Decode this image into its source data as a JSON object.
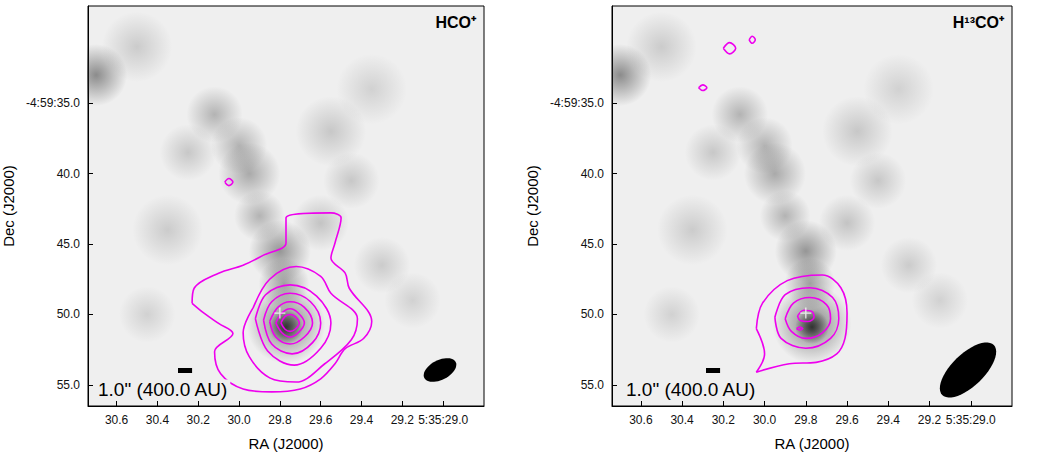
{
  "chart_data": [
    {
      "type": "contour",
      "title": "HCO⁺",
      "x_label": "RA (J2000)",
      "y_label": "Dec (J2000)",
      "xlim": [
        30.74,
        28.8
      ],
      "ylim": [
        56.5,
        28.1
      ],
      "xticks": [
        30.6,
        30.4,
        30.2,
        {
          "value": 30,
          "label": "30.0"
        },
        29.8,
        29.6,
        29.4,
        29.2,
        {
          "value": 29,
          "label": "5:35:29.0"
        }
      ],
      "yticks": [
        {
          "value": 35,
          "label": "-4:59:35.0"
        },
        {
          "value": 40,
          "label": "40.0"
        },
        {
          "value": 45,
          "label": "45.0"
        },
        {
          "value": 50,
          "label": "50.0"
        },
        {
          "value": 55,
          "label": "55.0"
        }
      ],
      "color": "#ee00ee",
      "contours": [
        [
          [
            30.23,
            49.21
          ],
          [
            30.22,
            48.14
          ],
          [
            30.1,
            47.07
          ],
          [
            29.98,
            46.5
          ],
          [
            29.88,
            45.79
          ],
          [
            29.77,
            44.93
          ],
          [
            29.77,
            43.14
          ],
          [
            29.55,
            42.79
          ],
          [
            29.5,
            43.14
          ],
          [
            29.53,
            44.93
          ],
          [
            29.55,
            46.0
          ],
          [
            29.48,
            47.07
          ],
          [
            29.46,
            48.14
          ],
          [
            29.35,
            50.5
          ],
          [
            29.39,
            51.71
          ],
          [
            29.48,
            52.43
          ],
          [
            29.53,
            53.5
          ],
          [
            29.6,
            54.57
          ],
          [
            29.7,
            55.29
          ],
          [
            29.84,
            55.5
          ],
          [
            29.98,
            55.29
          ],
          [
            30.09,
            54.21
          ],
          [
            30.12,
            52.64
          ],
          [
            30.03,
            51.36
          ],
          [
            30.1,
            50.64
          ],
          [
            30.17,
            49.93
          ],
          [
            30.23,
            49.21
          ]
        ],
        [
          [
            29.93,
            49.5
          ],
          [
            29.85,
            47.5
          ],
          [
            29.72,
            46.6
          ],
          [
            29.6,
            47.3
          ],
          [
            29.55,
            48.5
          ],
          [
            29.42,
            50.3
          ],
          [
            29.45,
            51.8
          ],
          [
            29.58,
            53.5
          ],
          [
            29.72,
            54.8
          ],
          [
            29.85,
            54.5
          ],
          [
            29.95,
            53.0
          ],
          [
            29.98,
            51.3
          ],
          [
            29.93,
            49.5
          ]
        ],
        [
          [
            29.92,
            50.3
          ],
          [
            29.87,
            48.6
          ],
          [
            29.75,
            47.9
          ],
          [
            29.62,
            48.7
          ],
          [
            29.55,
            50.6
          ],
          [
            29.6,
            52.4
          ],
          [
            29.73,
            53.6
          ],
          [
            29.86,
            52.6
          ],
          [
            29.92,
            50.3
          ]
        ],
        [
          [
            29.88,
            50.4
          ],
          [
            29.84,
            49.1
          ],
          [
            29.75,
            48.5
          ],
          [
            29.65,
            49.1
          ],
          [
            29.6,
            50.6
          ],
          [
            29.64,
            52.0
          ],
          [
            29.74,
            52.8
          ],
          [
            29.84,
            52.1
          ],
          [
            29.88,
            50.4
          ]
        ],
        [
          [
            29.85,
            50.5
          ],
          [
            29.81,
            49.5
          ],
          [
            29.75,
            49.1
          ],
          [
            29.68,
            49.5
          ],
          [
            29.64,
            50.6
          ],
          [
            29.68,
            51.6
          ],
          [
            29.75,
            52.1
          ],
          [
            29.82,
            51.6
          ],
          [
            29.85,
            50.5
          ]
        ],
        [
          [
            29.82,
            50.6
          ],
          [
            29.79,
            49.9
          ],
          [
            29.75,
            49.6
          ],
          [
            29.71,
            49.9
          ],
          [
            29.68,
            50.6
          ],
          [
            29.71,
            51.3
          ],
          [
            29.75,
            51.6
          ],
          [
            29.79,
            51.3
          ],
          [
            29.82,
            50.6
          ]
        ],
        [
          [
            29.795,
            50.6
          ],
          [
            29.775,
            50.15
          ],
          [
            29.75,
            50.0
          ],
          [
            29.725,
            50.15
          ],
          [
            29.705,
            50.6
          ],
          [
            29.725,
            51.05
          ],
          [
            29.75,
            51.2
          ],
          [
            29.775,
            51.05
          ],
          [
            29.795,
            50.6
          ]
        ],
        [
          [
            30.07,
            40.6
          ],
          [
            30.05,
            40.35
          ],
          [
            30.03,
            40.6
          ],
          [
            30.05,
            40.85
          ],
          [
            30.07,
            40.6
          ]
        ]
      ],
      "continuum": [
        [
          30.12,
          35.8,
          2.0,
          0.3
        ],
        [
          30.0,
          38.0,
          2.0,
          0.3
        ],
        [
          29.95,
          40.0,
          2.2,
          0.35
        ],
        [
          29.9,
          43.0,
          1.8,
          0.3
        ],
        [
          29.8,
          45.5,
          2.2,
          0.45
        ],
        [
          29.78,
          47.8,
          1.8,
          0.4
        ],
        [
          29.77,
          50.7,
          2.8,
          0.55
        ],
        [
          29.77,
          50.9,
          1.2,
          0.9
        ],
        [
          30.7,
          33.0,
          2.2,
          0.5
        ],
        [
          29.45,
          40.5,
          2.0,
          0.2
        ],
        [
          30.35,
          44.0,
          2.5,
          0.18
        ],
        [
          29.6,
          43.5,
          2.0,
          0.22
        ],
        [
          29.3,
          46.5,
          2.0,
          0.18
        ],
        [
          30.25,
          38.5,
          2.0,
          0.2
        ],
        [
          29.55,
          37.0,
          2.5,
          0.2
        ],
        [
          30.45,
          50.0,
          2.0,
          0.15
        ],
        [
          29.15,
          49.0,
          2.0,
          0.15
        ],
        [
          29.35,
          34.0,
          2.5,
          0.15
        ],
        [
          30.5,
          31.0,
          2.5,
          0.18
        ]
      ],
      "source": [
        29.8,
        49.9
      ],
      "beam": {
        "major": 2.5,
        "minor": 1.4,
        "pa": -63
      },
      "scale_bar": {
        "length": 1.0,
        "label": "1.0\" (400.0 AU)"
      }
    },
    {
      "type": "contour",
      "title": "H¹³CO⁺",
      "x_label": "RA (J2000)",
      "y_label": "Dec (J2000)",
      "xlim": [
        30.74,
        28.8
      ],
      "ylim": [
        56.5,
        28.1
      ],
      "xticks": [
        30.6,
        30.4,
        30.2,
        {
          "value": 30,
          "label": "30.0"
        },
        29.8,
        29.6,
        29.4,
        29.2,
        {
          "value": 29,
          "label": "5:35:29.0"
        }
      ],
      "yticks": [
        {
          "value": 35,
          "label": "-4:59:35.0"
        },
        {
          "value": 40,
          "label": "40.0"
        },
        {
          "value": 45,
          "label": "45.0"
        },
        {
          "value": 50,
          "label": "50.0"
        },
        {
          "value": 55,
          "label": "55.0"
        }
      ],
      "color": "#ee00ee",
      "contours": [
        [
          [
            30.04,
            51.0
          ],
          [
            30.01,
            49.2
          ],
          [
            29.89,
            47.6
          ],
          [
            29.72,
            47.2
          ],
          [
            29.63,
            48.1
          ],
          [
            29.6,
            49.9
          ],
          [
            29.61,
            51.7
          ],
          [
            29.65,
            52.8
          ],
          [
            29.75,
            53.4
          ],
          [
            29.88,
            53.5
          ],
          [
            30.04,
            54.1
          ],
          [
            30.0,
            52.8
          ],
          [
            30.04,
            51.0
          ]
        ],
        [
          [
            29.95,
            50.2
          ],
          [
            29.9,
            48.6
          ],
          [
            29.78,
            48.1
          ],
          [
            29.67,
            48.8
          ],
          [
            29.64,
            50.3
          ],
          [
            29.68,
            51.7
          ],
          [
            29.8,
            52.4
          ],
          [
            29.92,
            51.7
          ],
          [
            29.95,
            50.2
          ]
        ],
        [
          [
            29.9,
            50.3
          ],
          [
            29.86,
            49.2
          ],
          [
            29.78,
            48.8
          ],
          [
            29.7,
            49.3
          ],
          [
            29.68,
            50.3
          ],
          [
            29.72,
            51.3
          ],
          [
            29.8,
            51.7
          ],
          [
            29.87,
            51.2
          ],
          [
            29.9,
            50.3
          ]
        ],
        [
          [
            29.84,
            50.1
          ],
          [
            29.81,
            49.7
          ],
          [
            29.77,
            49.8
          ],
          [
            29.76,
            50.2
          ],
          [
            29.79,
            50.5
          ],
          [
            29.83,
            50.4
          ],
          [
            29.84,
            50.1
          ]
        ],
        [
          [
            29.845,
            51.0
          ],
          [
            29.83,
            50.9
          ],
          [
            29.815,
            51.0
          ],
          [
            29.83,
            51.1
          ],
          [
            29.845,
            51.0
          ]
        ],
        [
          [
            30.32,
            33.9
          ],
          [
            30.3,
            33.7
          ],
          [
            30.28,
            33.9
          ],
          [
            30.3,
            34.1
          ],
          [
            30.32,
            33.9
          ]
        ],
        [
          [
            30.2,
            31.1
          ],
          [
            30.17,
            30.7
          ],
          [
            30.14,
            31.1
          ],
          [
            30.17,
            31.5
          ],
          [
            30.2,
            31.1
          ]
        ],
        [
          [
            30.075,
            30.5
          ],
          [
            30.06,
            30.25
          ],
          [
            30.045,
            30.5
          ],
          [
            30.06,
            30.75
          ],
          [
            30.075,
            30.5
          ]
        ]
      ],
      "continuum": [
        [
          30.12,
          35.8,
          2.0,
          0.3
        ],
        [
          30.0,
          38.0,
          2.0,
          0.3
        ],
        [
          29.95,
          40.0,
          2.2,
          0.35
        ],
        [
          29.9,
          43.0,
          1.8,
          0.3
        ],
        [
          29.8,
          45.5,
          2.2,
          0.45
        ],
        [
          29.78,
          47.8,
          1.8,
          0.4
        ],
        [
          29.77,
          50.7,
          2.8,
          0.55
        ],
        [
          29.77,
          50.9,
          1.2,
          0.9
        ],
        [
          30.7,
          33.0,
          2.2,
          0.5
        ],
        [
          29.45,
          40.5,
          2.0,
          0.2
        ],
        [
          30.35,
          44.0,
          2.5,
          0.18
        ],
        [
          29.6,
          43.5,
          2.0,
          0.22
        ],
        [
          29.3,
          46.5,
          2.0,
          0.18
        ],
        [
          30.25,
          38.5,
          2.0,
          0.2
        ],
        [
          29.55,
          37.0,
          2.5,
          0.2
        ],
        [
          30.45,
          50.0,
          2.0,
          0.15
        ],
        [
          29.15,
          49.0,
          2.0,
          0.15
        ],
        [
          29.35,
          34.0,
          2.5,
          0.15
        ],
        [
          30.5,
          31.0,
          2.5,
          0.18
        ]
      ],
      "source": [
        29.8,
        49.9
      ],
      "beam": {
        "major": 5.1,
        "minor": 2.3,
        "pa": -46
      },
      "scale_bar": {
        "length": 1.0,
        "label": "1.0\" (400.0 AU)"
      }
    }
  ]
}
